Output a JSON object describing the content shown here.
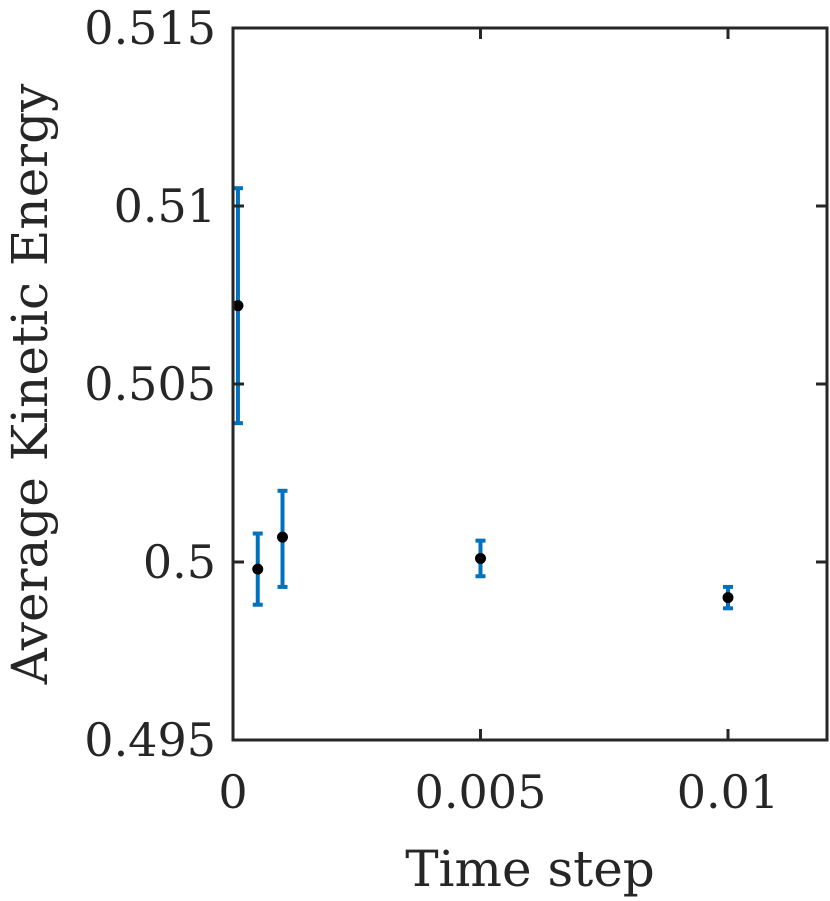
{
  "chart_data": {
    "type": "scatter",
    "xlabel": "Time step",
    "ylabel": "Average Kinetic Energy",
    "xlim": [
      0,
      0.012
    ],
    "ylim": [
      0.495,
      0.515
    ],
    "x_ticks": [
      0,
      0.005,
      0.01
    ],
    "x_tick_labels": [
      "0",
      "0.005",
      "0.01"
    ],
    "y_ticks": [
      0.495,
      0.5,
      0.505,
      0.51,
      0.515
    ],
    "y_tick_labels": [
      "0.495",
      "0.5",
      "0.505",
      "0.51",
      "0.515"
    ],
    "grid": false,
    "box": true,
    "series": [
      {
        "x": [
          0.0001,
          0.0005,
          0.001,
          0.005,
          0.01
        ],
        "y": [
          0.5072,
          0.4998,
          0.5007,
          0.5001,
          0.499
        ],
        "err_low": [
          0.5039,
          0.4988,
          0.4993,
          0.4996,
          0.4987
        ],
        "err_high": [
          0.5105,
          0.5008,
          0.502,
          0.5006,
          0.4993
        ],
        "marker_color": "#000000",
        "errorbar_color": "#0072BD"
      }
    ],
    "colors": {
      "axis": "#262626",
      "errorbar": "#0072BD",
      "marker": "#000000"
    }
  }
}
